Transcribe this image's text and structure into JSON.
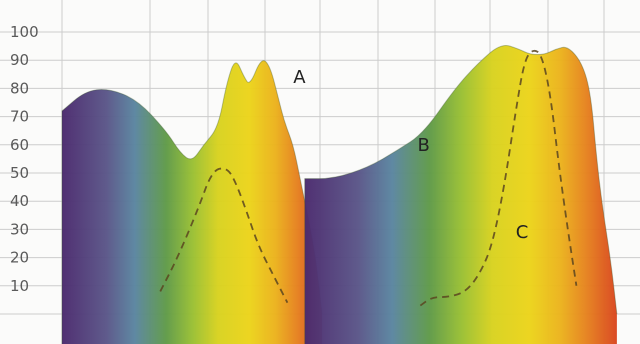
{
  "chart_data": {
    "type": "area",
    "title": "",
    "xlabel": "",
    "ylabel": "",
    "ylim": [
      0,
      100
    ],
    "y_ticks": [
      "100",
      "90",
      "80",
      "70",
      "60",
      "50",
      "40",
      "30",
      "20",
      "10"
    ],
    "grid": true,
    "x_scale": "visible spectrum (violet to red), unlabeled",
    "series": [
      {
        "name": "A",
        "style": "filled spectrum area",
        "points": [
          [
            0,
            72
          ],
          [
            0.04,
            79
          ],
          [
            0.08,
            80
          ],
          [
            0.13,
            76
          ],
          [
            0.18,
            65
          ],
          [
            0.205,
            57
          ],
          [
            0.225,
            54
          ],
          [
            0.245,
            60
          ],
          [
            0.27,
            66
          ],
          [
            0.285,
            82
          ],
          [
            0.3,
            91
          ],
          [
            0.315,
            84
          ],
          [
            0.325,
            81
          ],
          [
            0.345,
            91
          ],
          [
            0.36,
            88
          ],
          [
            0.375,
            76
          ],
          [
            0.385,
            68
          ],
          [
            0.4,
            60
          ],
          [
            0.412,
            48
          ],
          [
            0.42,
            40
          ],
          [
            0.43,
            30
          ],
          [
            0.44,
            18
          ],
          [
            0.45,
            0
          ]
        ]
      },
      {
        "name": "B",
        "style": "filled spectrum area",
        "points": [
          [
            0.42,
            48
          ],
          [
            0.47,
            48
          ],
          [
            0.53,
            52
          ],
          [
            0.58,
            58
          ],
          [
            0.625,
            64
          ],
          [
            0.68,
            80
          ],
          [
            0.72,
            89
          ],
          [
            0.76,
            96
          ],
          [
            0.79,
            94
          ],
          [
            0.81,
            92
          ],
          [
            0.835,
            92
          ],
          [
            0.855,
            94
          ],
          [
            0.875,
            95
          ],
          [
            0.9,
            89
          ],
          [
            0.915,
            78
          ],
          [
            0.925,
            55
          ],
          [
            0.935,
            38
          ],
          [
            0.95,
            18
          ],
          [
            0.96,
            0
          ]
        ]
      },
      {
        "name": "C",
        "style": "dashed line",
        "points": [
          [
            0.17,
            8
          ],
          [
            0.2,
            20
          ],
          [
            0.235,
            37
          ],
          [
            0.26,
            51
          ],
          [
            0.285,
            52
          ],
          [
            0.3,
            47
          ],
          [
            0.32,
            36
          ],
          [
            0.34,
            24
          ],
          [
            0.37,
            12
          ],
          [
            0.39,
            4
          ]
        ]
      },
      {
        "name": "C",
        "style": "dashed line",
        "points": [
          [
            0.62,
            3
          ],
          [
            0.64,
            6
          ],
          [
            0.67,
            6
          ],
          [
            0.7,
            8
          ],
          [
            0.725,
            15
          ],
          [
            0.745,
            25
          ],
          [
            0.765,
            45
          ],
          [
            0.785,
            72
          ],
          [
            0.8,
            90
          ],
          [
            0.815,
            94
          ],
          [
            0.83,
            92
          ],
          [
            0.845,
            78
          ],
          [
            0.86,
            52
          ],
          [
            0.875,
            30
          ],
          [
            0.89,
            10
          ]
        ]
      }
    ],
    "labels": [
      {
        "text": "A",
        "x": 0.4,
        "y": 84
      },
      {
        "text": "B",
        "x": 0.615,
        "y": 60
      },
      {
        "text": "C",
        "x": 0.785,
        "y": 29
      }
    ],
    "colors": {
      "violet": "#4b2a6e",
      "blue": "#5a7aa0",
      "green": "#5e9a45",
      "yellow": "#ecd41a",
      "orange": "#e6831e",
      "red": "#d9451e",
      "grid": "#cccccc",
      "dashed_line": "#5a4520"
    }
  }
}
